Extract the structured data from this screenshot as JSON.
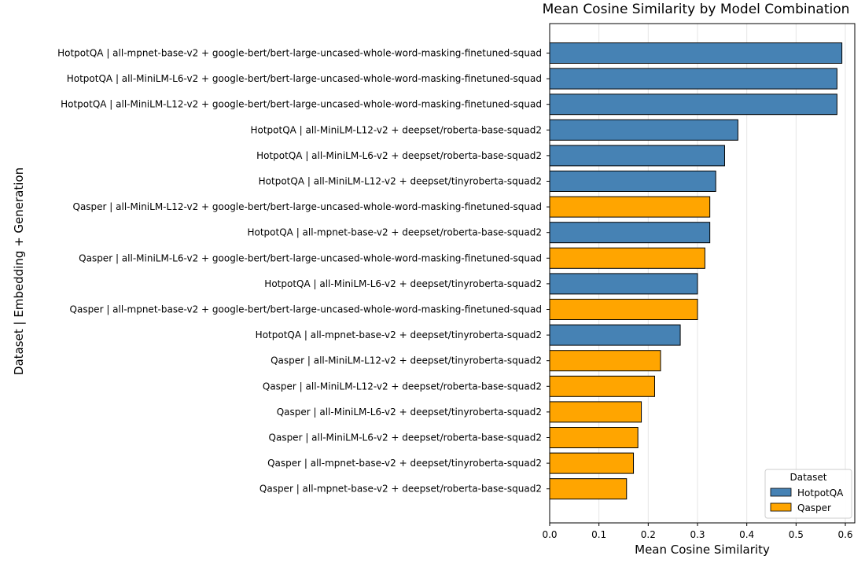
{
  "chart_data": {
    "type": "bar",
    "orientation": "horizontal",
    "title": "Mean Cosine Similarity by Model Combination",
    "xlabel": "Mean Cosine Similarity",
    "ylabel": "Dataset | Embedding + Generation",
    "xlim": [
      0,
      0.6
    ],
    "xticks": [
      "0.0",
      "0.1",
      "0.2",
      "0.3",
      "0.4",
      "0.5",
      "0.6"
    ],
    "grid": "x-vertical",
    "legend": {
      "title": "Dataset",
      "placement": "lower-right"
    },
    "series_colors": {
      "HotpotQA": "#4682b4",
      "Qasper": "#ffa500"
    },
    "bars": [
      {
        "label": "HotpotQA | all-mpnet-base-v2 + google-bert/bert-large-uncased-whole-word-masking-finetuned-squad",
        "dataset": "HotpotQA",
        "value": 0.593
      },
      {
        "label": "HotpotQA | all-MiniLM-L6-v2 + google-bert/bert-large-uncased-whole-word-masking-finetuned-squad",
        "dataset": "HotpotQA",
        "value": 0.583
      },
      {
        "label": "HotpotQA | all-MiniLM-L12-v2 + google-bert/bert-large-uncased-whole-word-masking-finetuned-squad",
        "dataset": "HotpotQA",
        "value": 0.583
      },
      {
        "label": "HotpotQA | all-MiniLM-L12-v2 + deepset/roberta-base-squad2",
        "dataset": "HotpotQA",
        "value": 0.382
      },
      {
        "label": "HotpotQA | all-MiniLM-L6-v2 + deepset/roberta-base-squad2",
        "dataset": "HotpotQA",
        "value": 0.355
      },
      {
        "label": "HotpotQA | all-MiniLM-L12-v2 + deepset/tinyroberta-squad2",
        "dataset": "HotpotQA",
        "value": 0.337
      },
      {
        "label": "Qasper | all-MiniLM-L12-v2 + google-bert/bert-large-uncased-whole-word-masking-finetuned-squad",
        "dataset": "Qasper",
        "value": 0.325
      },
      {
        "label": "HotpotQA | all-mpnet-base-v2 + deepset/roberta-base-squad2",
        "dataset": "HotpotQA",
        "value": 0.325
      },
      {
        "label": "Qasper | all-MiniLM-L6-v2 + google-bert/bert-large-uncased-whole-word-masking-finetuned-squad",
        "dataset": "Qasper",
        "value": 0.315
      },
      {
        "label": "HotpotQA | all-MiniLM-L6-v2 + deepset/tinyroberta-squad2",
        "dataset": "HotpotQA",
        "value": 0.3
      },
      {
        "label": "Qasper | all-mpnet-base-v2 + google-bert/bert-large-uncased-whole-word-masking-finetuned-squad",
        "dataset": "Qasper",
        "value": 0.3
      },
      {
        "label": "HotpotQA | all-mpnet-base-v2 + deepset/tinyroberta-squad2",
        "dataset": "HotpotQA",
        "value": 0.265
      },
      {
        "label": "Qasper | all-MiniLM-L12-v2 + deepset/tinyroberta-squad2",
        "dataset": "Qasper",
        "value": 0.225
      },
      {
        "label": "Qasper | all-MiniLM-L12-v2 + deepset/roberta-base-squad2",
        "dataset": "Qasper",
        "value": 0.213
      },
      {
        "label": "Qasper | all-MiniLM-L6-v2 + deepset/tinyroberta-squad2",
        "dataset": "Qasper",
        "value": 0.186
      },
      {
        "label": "Qasper | all-MiniLM-L6-v2 + deepset/roberta-base-squad2",
        "dataset": "Qasper",
        "value": 0.179
      },
      {
        "label": "Qasper | all-mpnet-base-v2 + deepset/tinyroberta-squad2",
        "dataset": "Qasper",
        "value": 0.17
      },
      {
        "label": "Qasper | all-mpnet-base-v2 + deepset/roberta-base-squad2",
        "dataset": "Qasper",
        "value": 0.156
      }
    ]
  }
}
